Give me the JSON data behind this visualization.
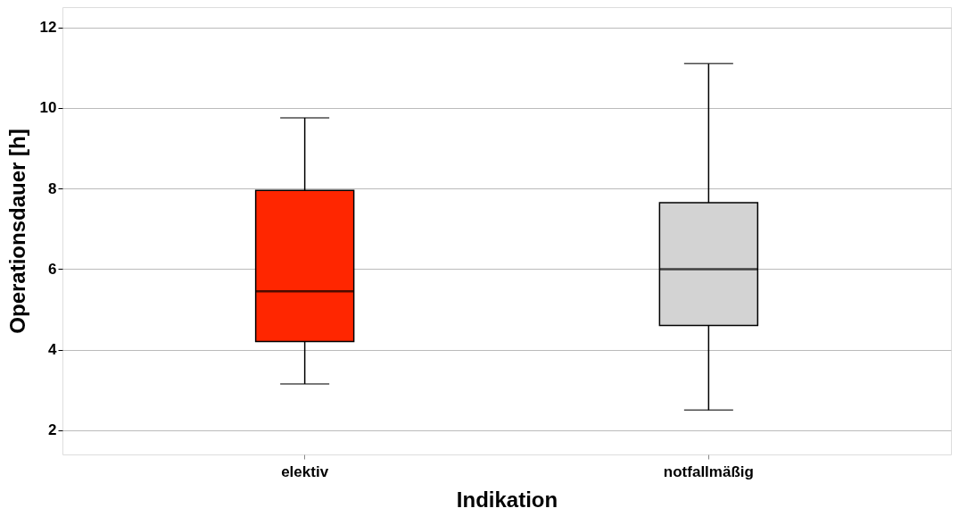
{
  "chart_data": {
    "type": "box",
    "xlabel": "Indikation",
    "ylabel": "Operationsdauer [h]",
    "categories": [
      "elektiv",
      "notfallmäßig"
    ],
    "boxes": [
      {
        "low": 3.15,
        "q1": 4.2,
        "median": 5.45,
        "q3": 7.95,
        "high": 9.75
      },
      {
        "low": 2.5,
        "q1": 4.6,
        "median": 6.0,
        "q3": 7.65,
        "high": 11.1
      }
    ],
    "colors": [
      "#ff2600",
      "#d3d3d3"
    ],
    "ylim": [
      1.4,
      12.5
    ],
    "yticks": [
      2,
      4,
      6,
      8,
      10,
      12
    ],
    "grid": "y"
  }
}
